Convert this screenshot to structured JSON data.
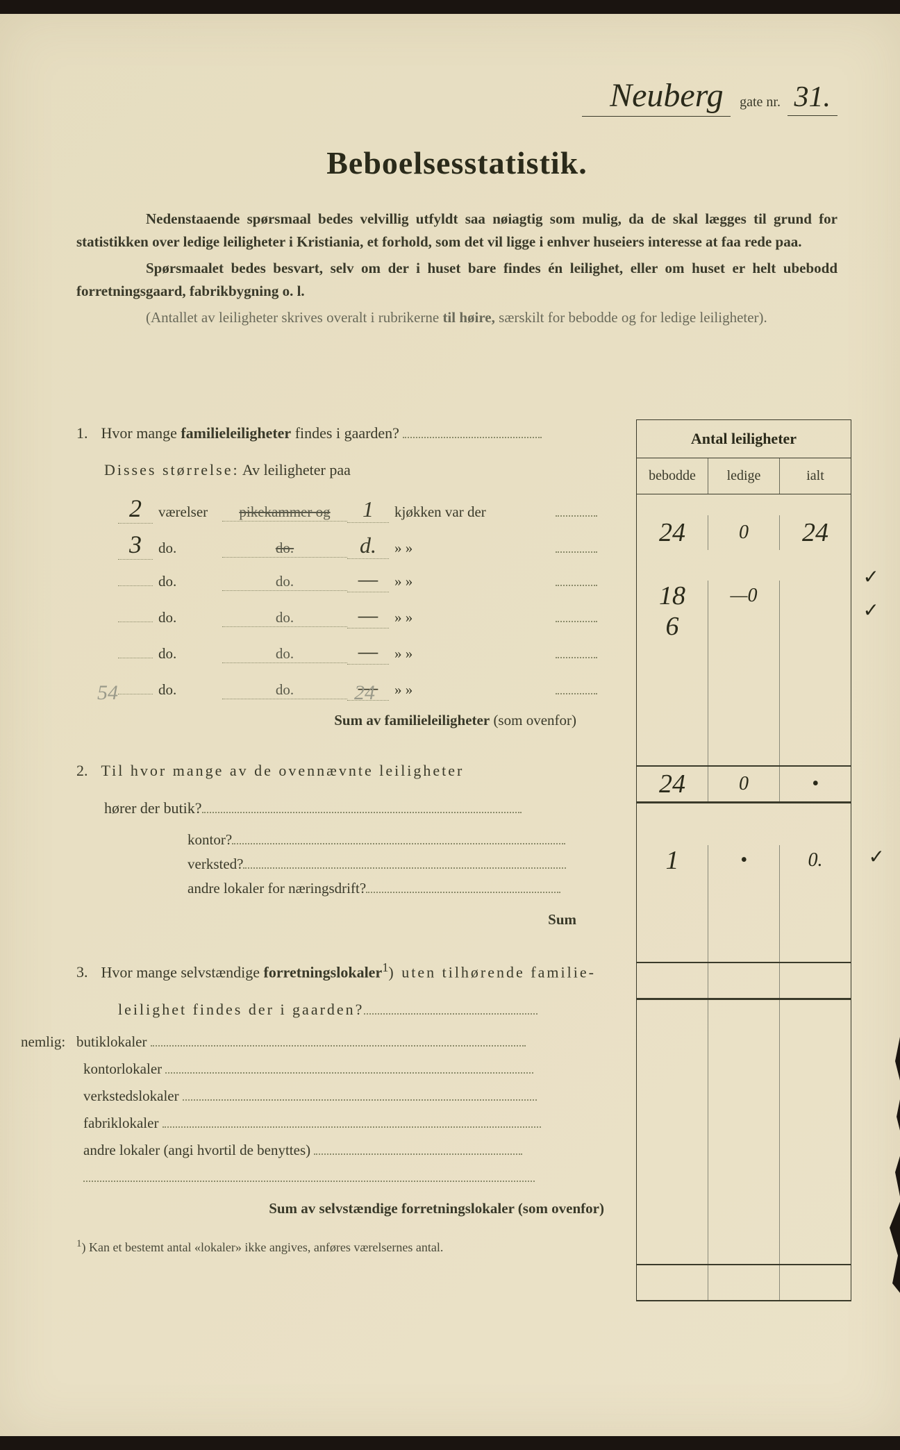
{
  "colors": {
    "paper": "#e8dfc3",
    "ink": "#2a2a1a",
    "faded_ink": "#6a6a5a",
    "background": "#1a1410"
  },
  "header": {
    "street_name": "Neuberg",
    "gate_label": "gate nr.",
    "gate_number": "31."
  },
  "title": "Beboelsesstatistik.",
  "intro": {
    "p1": "Nedenstaaende spørsmaal bedes velvillig utfyldt saa nøiagtig som mulig, da de skal lægges til grund for statistikken over ledige leiligheter i Kristiania, et forhold, som det vil ligge i enhver huseiers interesse at faa rede paa.",
    "p2": "Spørsmaalet bedes besvart, selv om der i huset bare findes én leilighet, eller om huset er helt ubebodd forretningsgaard, fabrikbygning o. l.",
    "p3_a": "(Antallet av leiligheter skrives overalt i rubrikerne ",
    "p3_b": "til høire,",
    "p3_c": " særskilt for bebodde og for ledige leiligheter)."
  },
  "table_header": {
    "title": "Antal leiligheter",
    "col1": "bebodde",
    "col2": "ledige",
    "col3": "ialt"
  },
  "q1": {
    "num": "1.",
    "text_a": "Hvor mange ",
    "text_b": "familieleiligheter",
    "text_c": " findes i gaarden?",
    "subtitle_a": "Disses størrelse:",
    "subtitle_b": "  Av leiligheter paa",
    "rows": [
      {
        "num": "2",
        "label": "værelser",
        "mid": "pikekammer og",
        "mid_strike": true,
        "kitchen": "1",
        "end": "kjøkken var der"
      },
      {
        "num": "3",
        "label": "do.",
        "mid": "do.",
        "mid_strike": true,
        "kitchen": "d.",
        "end": "»     »"
      },
      {
        "num": "",
        "label": "do.",
        "mid": "do.",
        "mid_strike": false,
        "kitchen": "—",
        "end": "»     »"
      },
      {
        "num": "",
        "label": "do.",
        "mid": "do.",
        "mid_strike": false,
        "kitchen": "—",
        "end": "»     »"
      },
      {
        "num": "",
        "label": "do.",
        "mid": "do.",
        "mid_strike": false,
        "kitchen": "—",
        "end": "»     »"
      },
      {
        "num": "",
        "label": "do.",
        "mid": "do.",
        "mid_strike": false,
        "kitchen": "—",
        "end": "»     »"
      }
    ],
    "pencil_left": "54",
    "pencil_right": "24",
    "sum_a": "Sum av ",
    "sum_b": "familieleiligheter",
    "sum_c": " (som ovenfor)",
    "values": {
      "main": {
        "bebodde": "24",
        "ledige": "0",
        "ialt": "24"
      },
      "row0": {
        "bebodde": "18",
        "ledige": "—0",
        "ialt": ""
      },
      "row1": {
        "bebodde": "6",
        "ledige": "",
        "ialt": ""
      },
      "sum": {
        "bebodde": "24",
        "ledige": "0",
        "ialt": "•"
      }
    }
  },
  "q2": {
    "num": "2.",
    "text": "Til hvor mange av de ovennævnte leiligheter",
    "items": [
      "hører der butik?",
      "kontor?",
      "verksted?",
      "andre lokaler for næringsdrift?"
    ],
    "sum": "Sum",
    "values": {
      "butik": {
        "bebodde": "1",
        "ledige": "•",
        "ialt": "0."
      }
    }
  },
  "q3": {
    "num": "3.",
    "text_a": "Hvor mange selvstændige ",
    "text_b": "forretningslokaler",
    "text_sup": "1",
    "text_c": ") uten tilhørende familie-",
    "text_d": "leilighet findes der i gaarden?",
    "nemlig": "nemlig:",
    "items": [
      "butiklokaler",
      "kontorlokaler",
      "verkstedslokaler",
      "fabriklokaler",
      "andre lokaler (angi hvortil de benyttes)"
    ],
    "sum": "Sum av selvstændige forretningslokaler (som ovenfor)"
  },
  "footnote": {
    "sup": "1",
    "text": ")  Kan et bestemt antal «lokaler» ikke angives, anføres værelsernes antal."
  }
}
